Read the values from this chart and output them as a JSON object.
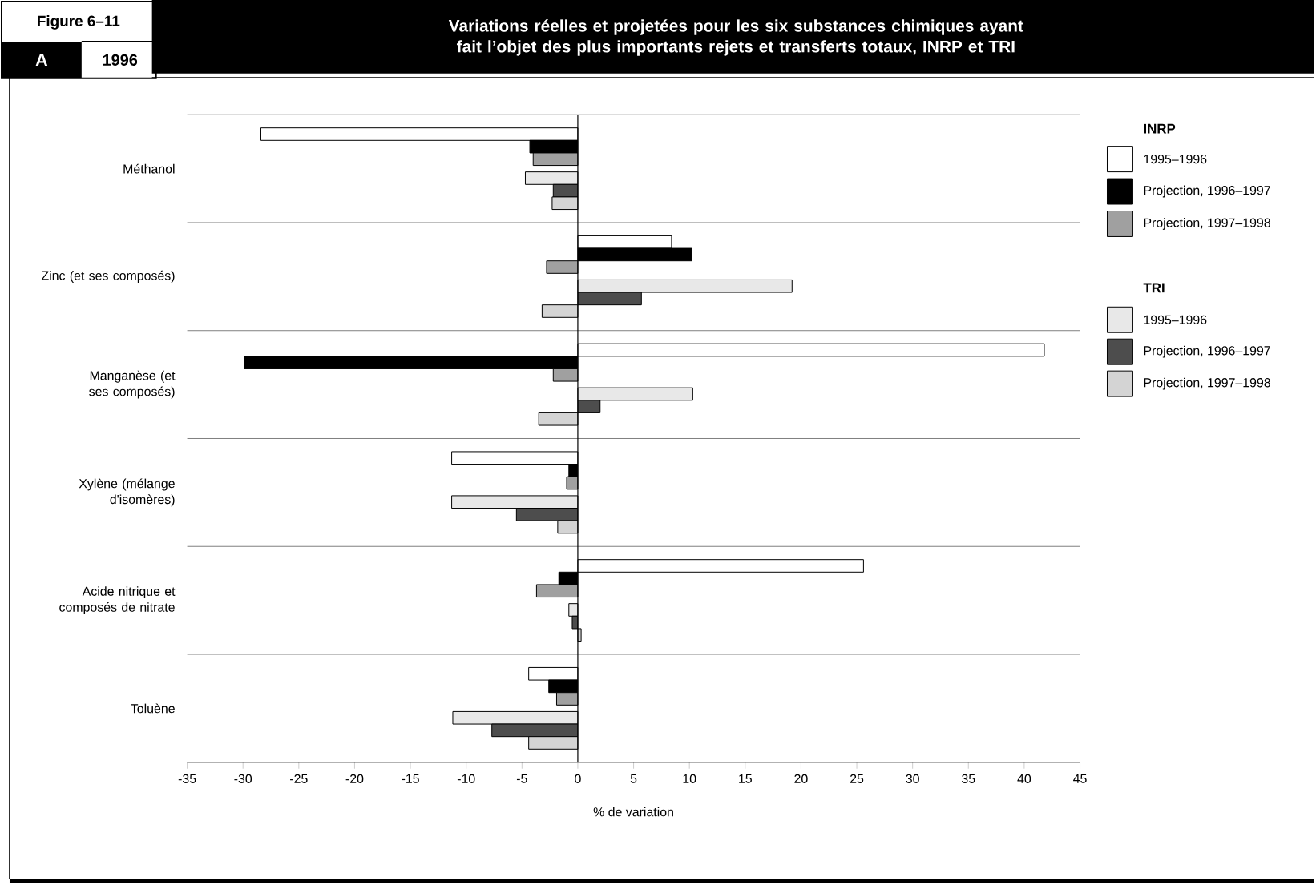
{
  "chart_data": {
    "type": "bar",
    "orientation": "horizontal",
    "title": "Variations réelles et projetées pour les six substances chimiques ayant fait l’objet des plus importants rejets et transferts totaux, INRP et TRI",
    "xlabel": "% de variation",
    "annotations": [
      "Figure 6–11",
      "A",
      "1996",
      "INRP",
      "TRI"
    ],
    "categories": [
      "Méthanol",
      "Zinc (et ses composés)",
      "Manganèse (et ses composés)",
      "Xylène (mélange d'isomères)",
      "Acide nitrique et composés de nitrate",
      "Toluène"
    ],
    "series": [
      {
        "name": "1995–1996",
        "color": "#ffffff",
        "values": [
          -28.4,
          8.4,
          41.8,
          -11.3,
          25.6,
          -4.4
        ]
      },
      {
        "name": "Projection, 1996–1997",
        "color": "#000000",
        "values": [
          -4.3,
          10.2,
          -29.9,
          -0.8,
          -1.7,
          -2.6
        ]
      },
      {
        "name": "Projection, 1997–1998",
        "color": "#a0a0a0",
        "values": [
          -4.0,
          -2.8,
          -2.2,
          -1.0,
          -3.7,
          -1.9
        ]
      },
      {
        "name": "1995–1996",
        "color": "#e8e8e8",
        "values": [
          -4.7,
          19.2,
          10.3,
          -11.3,
          -0.8,
          -11.2
        ]
      },
      {
        "name": "Projection, 1996–1997",
        "color": "#4d4d4d",
        "values": [
          -2.2,
          5.7,
          2.0,
          -5.5,
          -0.5,
          -7.7
        ]
      },
      {
        "name": "Projection, 1997–1998",
        "color": "#d4d4d4",
        "values": [
          -2.3,
          -3.2,
          -3.5,
          -1.8,
          0.3,
          -4.4
        ]
      }
    ],
    "xlim": [
      -35,
      45
    ],
    "xticks": [
      -35,
      -30,
      -25,
      -20,
      -15,
      -10,
      -5,
      0,
      5,
      10,
      15,
      20,
      25,
      30,
      35,
      40,
      45
    ],
    "grid": "y",
    "legend": "right"
  }
}
